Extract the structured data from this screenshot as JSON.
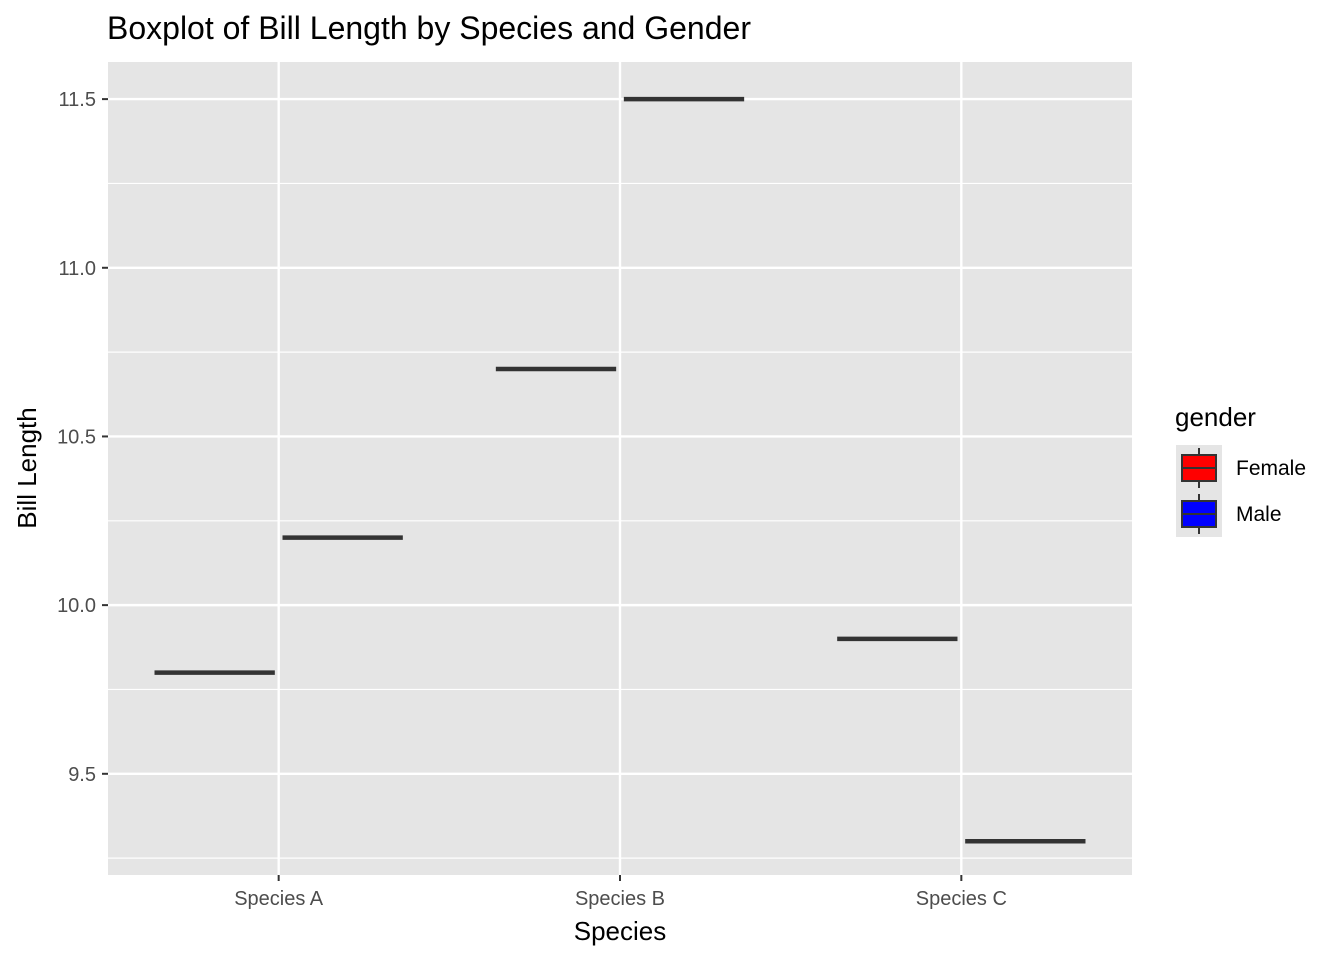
{
  "chart_data": {
    "type": "boxplot",
    "title": "Boxplot of Bill Length by Species and Gender",
    "xlabel": "Species",
    "ylabel": "Bill Length",
    "categories": [
      "Species A",
      "Species B",
      "Species C"
    ],
    "ylim": [
      9.2,
      11.61
    ],
    "yticks": [
      9.5,
      10.0,
      10.5,
      11.0,
      11.5
    ],
    "ytick_labels": [
      "9.5",
      "10.0",
      "10.5",
      "11.0",
      "11.5"
    ],
    "grid": true,
    "legend": {
      "title": "gender",
      "position": "right",
      "entries": [
        {
          "name": "Female",
          "color": "#ff0000"
        },
        {
          "name": "Male",
          "color": "#0000ff"
        }
      ]
    },
    "series": [
      {
        "name": "Female",
        "color": "#ff0000",
        "values": [
          9.8,
          10.7,
          9.9
        ]
      },
      {
        "name": "Male",
        "color": "#0000ff",
        "values": [
          10.2,
          11.5,
          9.3
        ]
      }
    ],
    "colors": {
      "panel": "#e5e5e5",
      "grid": "#ffffff",
      "median": "#333333",
      "tick": "#333333"
    }
  }
}
